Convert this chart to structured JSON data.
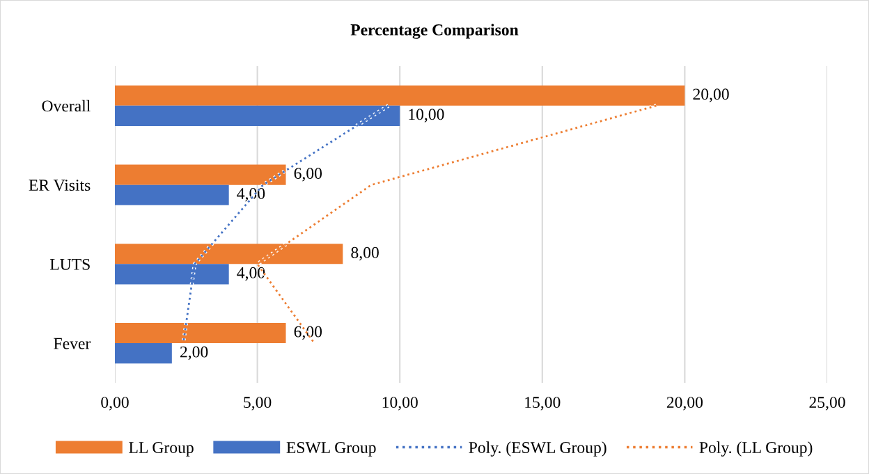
{
  "chart_data": {
    "type": "bar",
    "orientation": "horizontal",
    "title": "Percentage Comparison",
    "categories": [
      "Overall",
      "ER Visits",
      "LUTS",
      "Fever"
    ],
    "series": [
      {
        "name": "LL Group",
        "color": "#ed7d31",
        "values": [
          20,
          6,
          8,
          6
        ],
        "value_labels": [
          "20,00",
          "6,00",
          "8,00",
          "6,00"
        ]
      },
      {
        "name": "ESWL Group",
        "color": "#4472c4",
        "values": [
          10,
          4,
          4,
          2
        ],
        "value_labels": [
          "10,00",
          "4,00",
          "4,00",
          "2,00"
        ]
      },
      {
        "name": "Poly. (ESWL Group)",
        "type": "line",
        "line_style": "dotted",
        "color": "#4472c4",
        "values": [
          9.6,
          5.2,
          2.8,
          2.4
        ]
      },
      {
        "name": "Poly. (LL Group)",
        "type": "line",
        "line_style": "dotted",
        "color": "#ed7d31",
        "values": [
          19,
          9,
          5,
          7
        ]
      }
    ],
    "xlim": [
      0,
      25
    ],
    "xticks": [
      {
        "value": 0,
        "label": "0,00"
      },
      {
        "value": 5,
        "label": "5,00"
      },
      {
        "value": 10,
        "label": "10,00"
      },
      {
        "value": 15,
        "label": "15,00"
      },
      {
        "value": 20,
        "label": "20,00"
      },
      {
        "value": 25,
        "label": "25,00"
      }
    ],
    "grid": "x",
    "legend": "bottom"
  }
}
